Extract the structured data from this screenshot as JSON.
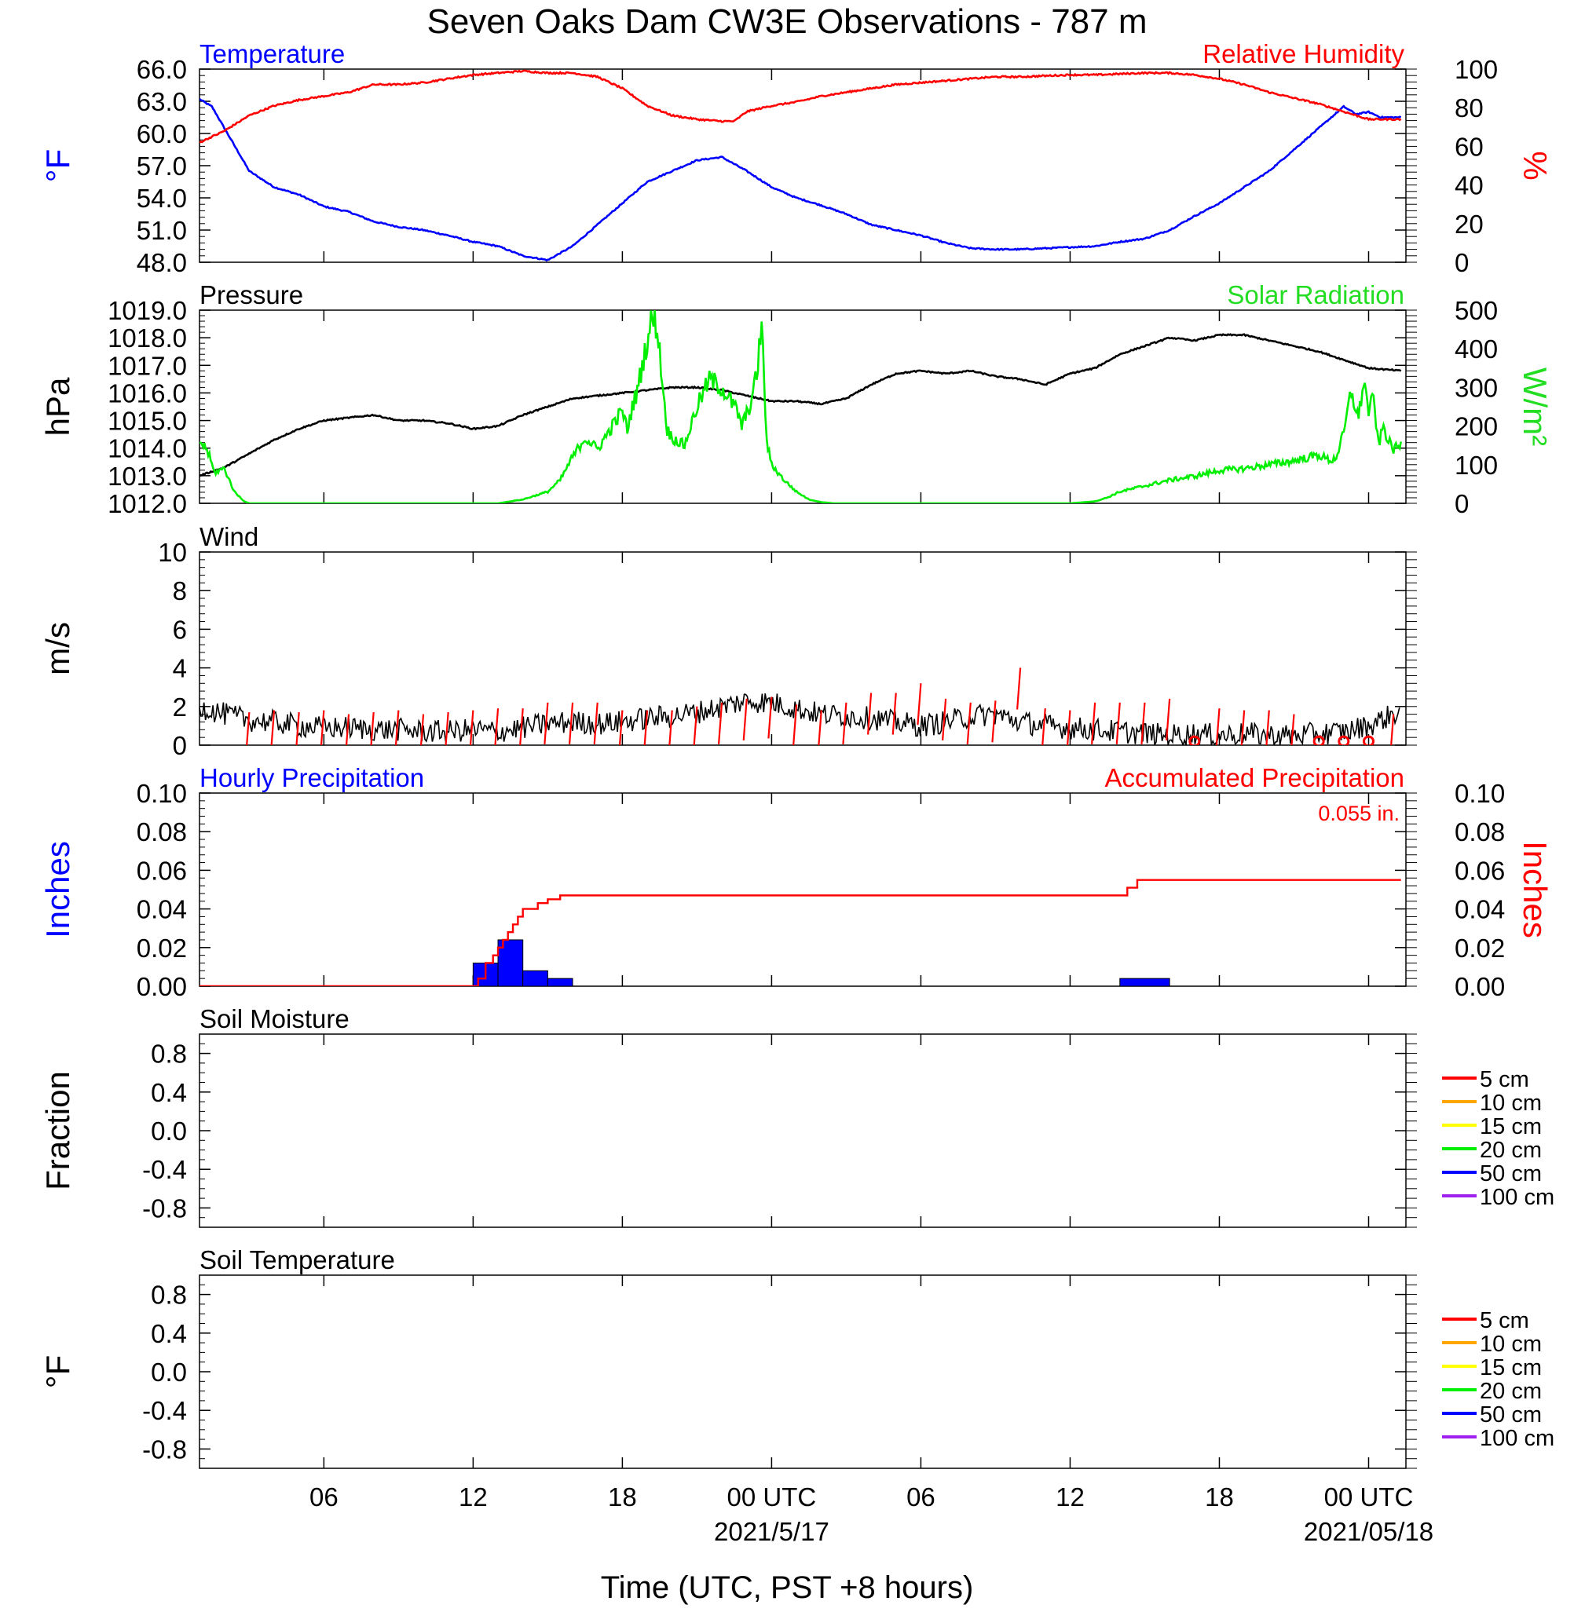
{
  "title": "Seven Oaks Dam CW3E Observations - 787 m",
  "xaxis": {
    "title": "Time (UTC, PST +8 hours)",
    "range_hours": [
      0,
      48.5
    ],
    "tick_labels": [
      {
        "hour": 5,
        "label": "06"
      },
      {
        "hour": 11,
        "label": "12"
      },
      {
        "hour": 17,
        "label": "18"
      },
      {
        "hour": 23,
        "label": "00 UTC",
        "date": "2021/5/17"
      },
      {
        "hour": 29,
        "label": "06"
      },
      {
        "hour": 35,
        "label": "12"
      },
      {
        "hour": 41,
        "label": "18"
      },
      {
        "hour": 47,
        "label": "00 UTC",
        "date": "2021/05/18"
      }
    ]
  },
  "colors": {
    "temperature": "#0000ff",
    "humidity": "#ff0000",
    "pressure": "#000000",
    "solar": "#00ee00",
    "wind": "#000000",
    "barbs": "#ff0000",
    "hourly_precip": "#0000ff",
    "accum_precip": "#ff0000"
  },
  "chart_data": [
    {
      "id": "temp_rh",
      "type": "line",
      "left_title": "Temperature",
      "right_title": "Relative Humidity",
      "ylabel_left": "°F",
      "ylabel_right": "%",
      "ylim_left": [
        48.0,
        66.0
      ],
      "ylim_right": [
        0,
        100
      ],
      "yticks_left": [
        "48.0",
        "51.0",
        "54.0",
        "57.0",
        "60.0",
        "63.0",
        "66.0"
      ],
      "yticks_right": [
        "0",
        "20",
        "40",
        "60",
        "80",
        "100"
      ],
      "series": [
        {
          "name": "Temperature",
          "axis": "left",
          "x": [
            0,
            0.5,
            1,
            2,
            3,
            4,
            5,
            6,
            7,
            8,
            9,
            10,
            11,
            12,
            13,
            14,
            15,
            16,
            17,
            18,
            19,
            20,
            21,
            22,
            23,
            24,
            25,
            26,
            27,
            28,
            29,
            30,
            31,
            32,
            33,
            34,
            35,
            36,
            37,
            38,
            39,
            40,
            41,
            42,
            43,
            44,
            45,
            46,
            46.5,
            47,
            47.5,
            48.3
          ],
          "y": [
            63.2,
            62.5,
            60.5,
            56.5,
            55.0,
            54.3,
            53.2,
            52.7,
            51.8,
            51.3,
            51.0,
            50.5,
            49.9,
            49.5,
            48.6,
            48.2,
            49.5,
            51.5,
            53.5,
            55.5,
            56.5,
            57.5,
            57.8,
            56.5,
            55.0,
            54.0,
            53.3,
            52.5,
            51.5,
            51.0,
            50.5,
            49.8,
            49.3,
            49.2,
            49.2,
            49.3,
            49.4,
            49.5,
            49.9,
            50.2,
            51.0,
            52.3,
            53.5,
            55.0,
            56.5,
            58.5,
            60.5,
            62.5,
            61.8,
            62.0,
            61.5,
            61.5
          ]
        },
        {
          "name": "Relative Humidity",
          "axis": "right",
          "x": [
            0,
            1,
            2,
            3,
            4,
            5,
            6,
            7,
            8,
            9,
            10,
            11,
            12,
            13,
            14,
            15,
            16,
            17,
            18,
            19,
            20,
            21,
            21.5,
            22,
            23,
            24,
            25,
            26,
            27,
            28,
            29,
            30,
            31,
            32,
            33,
            34,
            35,
            36,
            37,
            38,
            39,
            40,
            41,
            42,
            43,
            44,
            45,
            46,
            47,
            48.3
          ],
          "y": [
            62,
            68,
            76,
            81,
            84,
            86,
            88,
            92,
            92,
            93,
            95,
            97,
            98,
            99,
            98,
            98,
            96,
            90,
            81,
            76,
            74,
            73,
            73,
            78,
            81,
            83,
            86,
            88,
            90,
            92,
            93,
            94,
            95,
            96,
            96,
            96.5,
            97,
            97,
            97.5,
            98,
            98,
            97,
            95,
            92,
            88,
            85,
            82,
            78,
            74,
            74
          ]
        }
      ]
    },
    {
      "id": "pres_solar",
      "type": "line",
      "left_title": "Pressure",
      "right_title": "Solar Radiation",
      "ylabel_left": "hPa",
      "ylabel_right": "W/m²",
      "ylim_left": [
        1012.0,
        1019.0
      ],
      "ylim_right": [
        0,
        500
      ],
      "yticks_left": [
        "1012.0",
        "1013.0",
        "1014.0",
        "1015.0",
        "1016.0",
        "1017.0",
        "1018.0",
        "1019.0"
      ],
      "yticks_right": [
        "0",
        "100",
        "200",
        "300",
        "400",
        "500"
      ],
      "series": [
        {
          "name": "Pressure",
          "axis": "left",
          "x": [
            0,
            1,
            2,
            3,
            4,
            5,
            6,
            7,
            8,
            9,
            10,
            11,
            12,
            13,
            14,
            15,
            16,
            17,
            18,
            19,
            20,
            21,
            22,
            23,
            24,
            25,
            26,
            27,
            28,
            29,
            30,
            31,
            32,
            33,
            34,
            35,
            36,
            37,
            38,
            39,
            40,
            41,
            42,
            43,
            44,
            45,
            46,
            47,
            48.3
          ],
          "y": [
            1013.0,
            1013.3,
            1013.8,
            1014.3,
            1014.7,
            1015.0,
            1015.1,
            1015.2,
            1015.0,
            1015.0,
            1014.9,
            1014.7,
            1014.8,
            1015.2,
            1015.5,
            1015.8,
            1015.9,
            1016.0,
            1016.1,
            1016.2,
            1016.2,
            1016.1,
            1015.9,
            1015.7,
            1015.7,
            1015.6,
            1015.8,
            1016.3,
            1016.7,
            1016.8,
            1016.7,
            1016.8,
            1016.6,
            1016.5,
            1016.3,
            1016.7,
            1016.9,
            1017.4,
            1017.7,
            1018.0,
            1017.9,
            1018.1,
            1018.1,
            1017.9,
            1017.7,
            1017.5,
            1017.2,
            1016.9,
            1016.8
          ]
        },
        {
          "name": "Solar Radiation",
          "axis": "right",
          "x": [
            0,
            0.3,
            0.6,
            1,
            1.4,
            1.8,
            2,
            3,
            4,
            5,
            6,
            7,
            8,
            9,
            10,
            11,
            12,
            13,
            14,
            14.5,
            15,
            15.5,
            16,
            16.3,
            16.7,
            17,
            17.2,
            17.4,
            17.6,
            17.8,
            18,
            18.2,
            18.4,
            18.6,
            18.8,
            19,
            19.5,
            20,
            20.5,
            21,
            21.3,
            21.6,
            21.8,
            22,
            22.2,
            22.4,
            22.6,
            22.8,
            23,
            23.5,
            24,
            24.5,
            25,
            25.5,
            26,
            27,
            28,
            29,
            30,
            31,
            32,
            33,
            34,
            35,
            36,
            36.5,
            37,
            38,
            39,
            40,
            41,
            42,
            43,
            44,
            45,
            45.3,
            45.5,
            45.7,
            46,
            46.3,
            46.6,
            46.8,
            47,
            47.2,
            47.4,
            47.6,
            47.8,
            48,
            48.3
          ],
          "y": [
            160,
            140,
            80,
            90,
            30,
            5,
            0,
            0,
            0,
            0,
            0,
            0,
            0,
            0,
            0,
            0,
            0,
            10,
            30,
            60,
            120,
            170,
            140,
            170,
            210,
            240,
            190,
            250,
            290,
            360,
            420,
            480,
            460,
            320,
            190,
            170,
            150,
            250,
            320,
            300,
            270,
            240,
            200,
            230,
            270,
            330,
            470,
            160,
            100,
            60,
            30,
            10,
            3,
            0,
            0,
            0,
            0,
            0,
            0,
            0,
            0,
            0,
            0,
            0,
            5,
            15,
            30,
            45,
            60,
            70,
            85,
            90,
            100,
            110,
            125,
            115,
            110,
            120,
            180,
            290,
            220,
            320,
            240,
            270,
            150,
            200,
            160,
            140,
            150
          ]
        }
      ]
    },
    {
      "id": "wind",
      "type": "line",
      "left_title": "Wind",
      "ylabel_left": "m/s",
      "ylim_left": [
        0,
        10
      ],
      "yticks_left": [
        "0",
        "2",
        "4",
        "6",
        "8",
        "10"
      ],
      "series": [
        {
          "name": "Wind",
          "axis": "left",
          "x": [
            0,
            1,
            2,
            3,
            4,
            5,
            6,
            7,
            8,
            9,
            10,
            11,
            12,
            13,
            14,
            15,
            16,
            17,
            18,
            19,
            20,
            21,
            22,
            23,
            24,
            25,
            26,
            27,
            28,
            29,
            30,
            31,
            32,
            33,
            34,
            35,
            36,
            37,
            38,
            39,
            40,
            41,
            42,
            43,
            44,
            45,
            46,
            47,
            48.3
          ],
          "y": [
            2.0,
            1.6,
            1.3,
            1.2,
            1.0,
            0.9,
            0.9,
            0.8,
            0.8,
            0.7,
            0.7,
            0.8,
            0.7,
            0.9,
            1.1,
            1.2,
            1.1,
            1.2,
            1.4,
            1.5,
            1.7,
            2.0,
            2.3,
            2.2,
            1.9,
            1.6,
            1.5,
            1.4,
            1.2,
            1.0,
            1.2,
            1.5,
            1.6,
            1.2,
            1.0,
            0.9,
            0.8,
            0.7,
            0.6,
            0.5,
            0.6,
            0.5,
            0.6,
            0.5,
            0.5,
            0.6,
            0.7,
            1.0,
            1.8
          ]
        },
        {
          "name": "Wind Barbs",
          "axis": "left",
          "x": [
            2,
            3,
            4,
            5,
            6,
            7,
            8,
            9,
            10,
            11,
            12,
            13,
            14,
            15,
            16,
            17,
            18,
            19,
            20,
            21,
            22,
            23,
            24,
            25,
            26,
            27,
            28,
            29,
            30,
            31,
            32,
            33,
            34,
            35,
            36,
            37,
            38,
            39,
            40,
            41,
            42,
            43,
            44,
            45,
            46,
            47,
            48
          ],
          "y": [
            1.5,
            1.6,
            1.5,
            1.6,
            1.4,
            1.5,
            1.6,
            1.4,
            1.5,
            1.6,
            1.7,
            1.7,
            2.0,
            2.0,
            2.0,
            1.6,
            1.6,
            1.6,
            1.8,
            2.0,
            2.2,
            2.3,
            1.9,
            1.6,
            2.0,
            2.5,
            2.5,
            3.0,
            2.2,
            2.0,
            2.1,
            3.8,
            1.7,
            1.6,
            2.0,
            2.0,
            2.0,
            2.2,
            0.1,
            1.7,
            1.6,
            1.6,
            1.4,
            0.3,
            0.3,
            0.3,
            1.4
          ]
        }
      ]
    },
    {
      "id": "precip",
      "type": "bar",
      "left_title": "Hourly Precipitation",
      "right_title": "Accumulated Precipitation",
      "total_label": "0.055 in.",
      "ylabel_left": "Inches",
      "ylabel_right": "Inches",
      "ylim_left": [
        0,
        0.1
      ],
      "ylim_right": [
        0,
        0.1
      ],
      "yticks_left": [
        "0.00",
        "0.02",
        "0.04",
        "0.06",
        "0.08",
        "0.10"
      ],
      "yticks_right": [
        "0.00",
        "0.02",
        "0.04",
        "0.06",
        "0.08",
        "0.10"
      ],
      "series": [
        {
          "name": "Hourly Precipitation",
          "axis": "left",
          "bars": [
            {
              "x0": 11,
              "x1": 12,
              "y": 0.012
            },
            {
              "x0": 12,
              "x1": 13,
              "y": 0.024
            },
            {
              "x0": 13,
              "x1": 14,
              "y": 0.008
            },
            {
              "x0": 14,
              "x1": 15,
              "y": 0.004
            },
            {
              "x0": 37,
              "x1": 39,
              "y": 0.004
            }
          ]
        },
        {
          "name": "Accumulated Precipitation",
          "axis": "right",
          "x": [
            0,
            11,
            11.2,
            11.5,
            11.8,
            12.0,
            12.2,
            12.4,
            12.6,
            12.8,
            13.0,
            13.3,
            13.6,
            14.0,
            14.5,
            15.0,
            37.0,
            37.3,
            37.7,
            48.3
          ],
          "y": [
            0,
            0,
            0.004,
            0.012,
            0.016,
            0.02,
            0.024,
            0.028,
            0.032,
            0.036,
            0.04,
            0.04,
            0.043,
            0.045,
            0.047,
            0.047,
            0.047,
            0.051,
            0.055,
            0.055
          ]
        }
      ]
    },
    {
      "id": "soil_moisture",
      "type": "line",
      "left_title": "Soil Moisture",
      "ylabel_left": "Fraction",
      "ylim_left": [
        -1.0,
        1.0
      ],
      "yticks_left": [
        "-0.8",
        "-0.4",
        "0.0",
        "0.4",
        "0.8"
      ],
      "legend": [
        "5 cm",
        "10 cm",
        "15 cm",
        "20 cm",
        "50 cm",
        "100 cm"
      ],
      "series": []
    },
    {
      "id": "soil_temp",
      "type": "line",
      "left_title": "Soil Temperature",
      "ylabel_left": "°F",
      "ylim_left": [
        -1.0,
        1.0
      ],
      "yticks_left": [
        "-0.8",
        "-0.4",
        "0.0",
        "0.4",
        "0.8"
      ],
      "legend": [
        "5 cm",
        "10 cm",
        "15 cm",
        "20 cm",
        "50 cm",
        "100 cm"
      ],
      "series": []
    }
  ],
  "legend_colors": [
    "#ff0000",
    "#ffa500",
    "#ffff00",
    "#00ee00",
    "#0000ff",
    "#a020f0"
  ]
}
